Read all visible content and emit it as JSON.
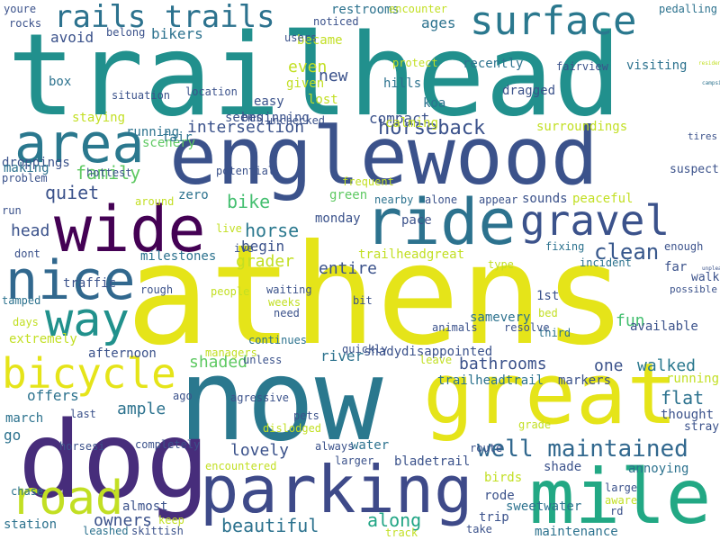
{
  "words": [
    {
      "text": "trailhead",
      "color": "#21908d"
    },
    {
      "text": "athens",
      "color": "#e5e419"
    },
    {
      "text": "englewood",
      "color": "#3b528b"
    },
    {
      "text": "now",
      "color": "#2a788e"
    },
    {
      "text": "dog",
      "color": "#472d7b"
    },
    {
      "text": "great",
      "color": "#e5e419"
    },
    {
      "text": "ride",
      "color": "#2c728e"
    },
    {
      "text": "wide",
      "color": "#440154"
    },
    {
      "text": "parking",
      "color": "#3e4a89"
    },
    {
      "text": "mile",
      "color": "#22a884"
    },
    {
      "text": "surface",
      "color": "#2a788e"
    },
    {
      "text": "gravel",
      "color": "#3b528b"
    },
    {
      "text": "area",
      "color": "#2a788e"
    },
    {
      "text": "nice",
      "color": "#31688e"
    },
    {
      "text": "road",
      "color": "#c2df23"
    },
    {
      "text": "way",
      "color": "#21918c"
    },
    {
      "text": "bicycle",
      "color": "#e5e419"
    },
    {
      "text": "rails trails",
      "color": "#2c728e"
    },
    {
      "text": "well maintained",
      "color": "#31688e"
    },
    {
      "text": "intersection",
      "color": "#3b528b"
    },
    {
      "text": "horseback",
      "color": "#3b528b"
    },
    {
      "text": "clean",
      "color": "#38588c"
    },
    {
      "text": "family",
      "color": "#5ec962"
    },
    {
      "text": "quiet",
      "color": "#3b528b"
    },
    {
      "text": "bike",
      "color": "#44bf70"
    },
    {
      "text": "head",
      "color": "#3b528b"
    },
    {
      "text": "horse",
      "color": "#2a788e"
    },
    {
      "text": "begin",
      "color": "#3b528b"
    },
    {
      "text": "milestones",
      "color": "#2c728e"
    },
    {
      "text": "lovely",
      "color": "#3b528b"
    },
    {
      "text": "ample",
      "color": "#2c728e"
    },
    {
      "text": "beautiful",
      "color": "#2c728e"
    },
    {
      "text": "along",
      "color": "#21a585"
    },
    {
      "text": "owners",
      "color": "#3b528b"
    },
    {
      "text": "bathrooms",
      "color": "#3b528b"
    },
    {
      "text": "walked",
      "color": "#2a788e"
    },
    {
      "text": "one",
      "color": "#3b528b"
    },
    {
      "text": "flat",
      "color": "#2c728e"
    },
    {
      "text": "fun",
      "color": "#44bf70"
    },
    {
      "text": "thought",
      "color": "#3b528b"
    },
    {
      "text": "annoying",
      "color": "#2c728e"
    },
    {
      "text": "avoid",
      "color": "#3b528b"
    },
    {
      "text": "bikers",
      "color": "#2c728e"
    },
    {
      "text": "new",
      "color": "#3b528b"
    },
    {
      "text": "even",
      "color": "#c2df23"
    },
    {
      "text": "ages",
      "color": "#2c728e"
    },
    {
      "text": "compact",
      "color": "#3b528b"
    },
    {
      "text": "koa",
      "color": "#2c728e"
    },
    {
      "text": "restrooms",
      "color": "#2c728e"
    },
    {
      "text": "trailheadtrail",
      "color": "#2c728e"
    },
    {
      "text": "bladetrail",
      "color": "#3b528b"
    },
    {
      "text": "sweetwater",
      "color": "#2c728e"
    },
    {
      "text": "maintenance",
      "color": "#2c728e"
    },
    {
      "text": "entire",
      "color": "#3b528b"
    },
    {
      "text": "grader",
      "color": "#c2df23"
    },
    {
      "text": "shaded",
      "color": "#5ec962"
    },
    {
      "text": "suspect",
      "color": "#3b528b"
    },
    {
      "text": "tires",
      "color": "#3b528b"
    },
    {
      "text": "campsite",
      "color": "#2c728e"
    },
    {
      "text": "walk",
      "color": "#3b528b"
    },
    {
      "text": "dragged",
      "color": "#3b528b"
    },
    {
      "text": "visiting",
      "color": "#2c728e"
    },
    {
      "text": "recently",
      "color": "#2c728e"
    },
    {
      "text": "surroundings",
      "color": "#c2df23"
    },
    {
      "text": "trailheadgreat",
      "color": "#c2df23"
    },
    {
      "text": "calming",
      "color": "#c2df23"
    },
    {
      "text": "peaceful",
      "color": "#c2df23"
    },
    {
      "text": "sounds",
      "color": "#3b528b"
    },
    {
      "text": "pace",
      "color": "#3b528b"
    },
    {
      "text": "river",
      "color": "#2c728e"
    },
    {
      "text": "shady",
      "color": "#3b528b"
    },
    {
      "text": "disappointed",
      "color": "#3b528b"
    },
    {
      "text": "samevery",
      "color": "#2c728e"
    },
    {
      "text": "running",
      "color": "#2c728e"
    },
    {
      "text": "scenery",
      "color": "#5ec962"
    },
    {
      "text": "extremely",
      "color": "#c2df23"
    },
    {
      "text": "afternoon",
      "color": "#3b528b"
    },
    {
      "text": "offers",
      "color": "#2c728e"
    },
    {
      "text": "march",
      "color": "#2c728e"
    },
    {
      "text": "go",
      "color": "#2c728e"
    },
    {
      "text": "station",
      "color": "#2c728e"
    },
    {
      "text": "almost",
      "color": "#3b528b"
    },
    {
      "text": "rode",
      "color": "#3b528b"
    },
    {
      "text": "trip",
      "color": "#3b528b"
    },
    {
      "text": "birds",
      "color": "#c2df23"
    },
    {
      "text": "water",
      "color": "#2c728e"
    },
    {
      "text": "shade",
      "color": "#3b528b"
    },
    {
      "text": "markers",
      "color": "#3b528b"
    },
    {
      "text": "traffic",
      "color": "#3b528b"
    },
    {
      "text": "droppings",
      "color": "#3b528b"
    },
    {
      "text": "making",
      "color": "#2c728e"
    },
    {
      "text": "box",
      "color": "#2c728e"
    },
    {
      "text": "staying",
      "color": "#c2df23"
    },
    {
      "text": "zero",
      "color": "#2c728e"
    },
    {
      "text": "fair",
      "color": "#2c728e"
    },
    {
      "text": "seems",
      "color": "#3b528b"
    },
    {
      "text": "beginning",
      "color": "#3b528b"
    },
    {
      "text": "easy",
      "color": "#3b528b"
    },
    {
      "text": "given",
      "color": "#c2df23"
    },
    {
      "text": "lost",
      "color": "#c2df23"
    },
    {
      "text": "became",
      "color": "#c2df23"
    },
    {
      "text": "noticed",
      "color": "#3b528b"
    },
    {
      "text": "encounter",
      "color": "#c2df23"
    },
    {
      "text": "hills",
      "color": "#2c728e"
    },
    {
      "text": "protect",
      "color": "#c2df23"
    },
    {
      "text": "frequent",
      "color": "#c2df23"
    },
    {
      "text": "available",
      "color": "#3b528b"
    },
    {
      "text": "far",
      "color": "#3b528b"
    },
    {
      "text": "1st",
      "color": "#3b528b"
    },
    {
      "text": "third",
      "color": "#2c728e"
    },
    {
      "text": "bed",
      "color": "#c2df23"
    },
    {
      "text": "running",
      "color": "#c2df23"
    },
    {
      "text": "stray",
      "color": "#3b528b"
    },
    {
      "text": "large",
      "color": "#3b528b"
    },
    {
      "text": "aware",
      "color": "#c2df23"
    },
    {
      "text": "rd",
      "color": "#3b528b"
    },
    {
      "text": "pedalling",
      "color": "#2c728e"
    },
    {
      "text": "fairview",
      "color": "#3b528b"
    },
    {
      "text": "residents",
      "color": "#c2df23"
    },
    {
      "text": "unpleasant",
      "color": "#3b528b"
    },
    {
      "text": "possible",
      "color": "#3b528b"
    },
    {
      "text": "incident",
      "color": "#2c728e"
    },
    {
      "text": "enough",
      "color": "#3b528b"
    },
    {
      "text": "fixing",
      "color": "#2c728e"
    },
    {
      "text": "appear",
      "color": "#3b528b"
    },
    {
      "text": "alone",
      "color": "#3b528b"
    },
    {
      "text": "nearby",
      "color": "#2c728e"
    },
    {
      "text": "green",
      "color": "#5ec962"
    },
    {
      "text": "monday",
      "color": "#3b528b"
    },
    {
      "text": "ive",
      "color": "#3b528b"
    },
    {
      "text": "live",
      "color": "#c2df23"
    },
    {
      "text": "waiting",
      "color": "#3b528b"
    },
    {
      "text": "weeks",
      "color": "#c2df23"
    },
    {
      "text": "need",
      "color": "#3b528b"
    },
    {
      "text": "continues",
      "color": "#2c728e"
    },
    {
      "text": "bit",
      "color": "#3b528b"
    },
    {
      "text": "quickly",
      "color": "#3b528b"
    },
    {
      "text": "animals",
      "color": "#3b528b"
    },
    {
      "text": "resolve",
      "color": "#3b528b"
    },
    {
      "text": "type",
      "color": "#c2df23"
    },
    {
      "text": "leave",
      "color": "#c2df23"
    },
    {
      "text": "route",
      "color": "#3b528b"
    },
    {
      "text": "grade",
      "color": "#c2df23"
    },
    {
      "text": "take",
      "color": "#3b528b"
    },
    {
      "text": "track",
      "color": "#c2df23"
    },
    {
      "text": "always",
      "color": "#3b528b"
    },
    {
      "text": "larger",
      "color": "#3b528b"
    },
    {
      "text": "encountered",
      "color": "#c2df23"
    },
    {
      "text": "dislodged",
      "color": "#c2df23"
    },
    {
      "text": "pets",
      "color": "#3b528b"
    },
    {
      "text": "unless",
      "color": "#3b528b"
    },
    {
      "text": "agressive",
      "color": "#3b528b"
    },
    {
      "text": "completely",
      "color": "#3b528b"
    },
    {
      "text": "managers",
      "color": "#c2df23"
    },
    {
      "text": "people",
      "color": "#c2df23"
    },
    {
      "text": "rough",
      "color": "#3b528b"
    },
    {
      "text": "ago",
      "color": "#3b528b"
    },
    {
      "text": "last",
      "color": "#3b528b"
    },
    {
      "text": "horsesi",
      "color": "#3b528b"
    },
    {
      "text": "leashed",
      "color": "#2c728e"
    },
    {
      "text": "skittish",
      "color": "#3b528b"
    },
    {
      "text": "keep",
      "color": "#c2df23"
    },
    {
      "text": "chase",
      "color": "#2c728e"
    },
    {
      "text": "days",
      "color": "#c2df23"
    },
    {
      "text": "tamped",
      "color": "#2c728e"
    },
    {
      "text": "dont",
      "color": "#3b528b"
    },
    {
      "text": "run",
      "color": "#3b528b"
    },
    {
      "text": "problem",
      "color": "#3b528b"
    },
    {
      "text": "hottest",
      "color": "#3b528b"
    },
    {
      "text": "potential",
      "color": "#3b528b"
    },
    {
      "text": "around",
      "color": "#c2df23"
    },
    {
      "text": "situation",
      "color": "#3b528b"
    },
    {
      "text": "unchecked",
      "color": "#3b528b"
    },
    {
      "text": "location",
      "color": "#3b528b"
    },
    {
      "text": "belong",
      "color": "#3b528b"
    },
    {
      "text": "users",
      "color": "#3b528b"
    },
    {
      "text": "youre",
      "color": "#3b528b"
    },
    {
      "text": "rocks",
      "color": "#3b528b"
    }
  ]
}
